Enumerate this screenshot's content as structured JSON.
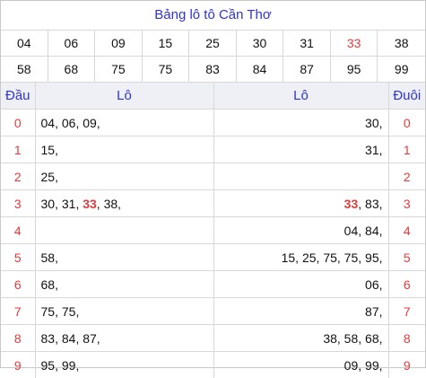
{
  "title": "Bảng lô tô Cần Thơ",
  "numbers_row1": [
    "04",
    "06",
    "09",
    "15",
    "25",
    "30",
    "31",
    "33",
    "38"
  ],
  "numbers_row2": [
    "58",
    "68",
    "75",
    "75",
    "83",
    "84",
    "87",
    "95",
    "99"
  ],
  "highlight": "33",
  "colors": {
    "title": "#2f33d6",
    "accent": "#e23a3a",
    "header_bg": "#eef0f5",
    "border": "#d8d8d8"
  },
  "headers": {
    "dau": "Đầu",
    "lo_left": "Lô",
    "lo_right": "Lô",
    "duoi": "Đuôi"
  },
  "rows": [
    {
      "key": "0",
      "left": [
        "04",
        "06",
        "09"
      ],
      "right": [
        "30"
      ]
    },
    {
      "key": "1",
      "left": [
        "15"
      ],
      "right": [
        "31"
      ]
    },
    {
      "key": "2",
      "left": [
        "25"
      ],
      "right": []
    },
    {
      "key": "3",
      "left": [
        "30",
        "31",
        "33",
        "38"
      ],
      "right": [
        "33",
        "83"
      ]
    },
    {
      "key": "4",
      "left": [],
      "right": [
        "04",
        "84"
      ]
    },
    {
      "key": "5",
      "left": [
        "58"
      ],
      "right": [
        "15",
        "25",
        "75",
        "75",
        "95"
      ]
    },
    {
      "key": "6",
      "left": [
        "68"
      ],
      "right": [
        "06"
      ]
    },
    {
      "key": "7",
      "left": [
        "75",
        "75"
      ],
      "right": [
        "87"
      ]
    },
    {
      "key": "8",
      "left": [
        "83",
        "84",
        "87"
      ],
      "right": [
        "38",
        "58",
        "68"
      ]
    },
    {
      "key": "9",
      "left": [
        "95",
        "99"
      ],
      "right": [
        "09",
        "99"
      ]
    }
  ]
}
